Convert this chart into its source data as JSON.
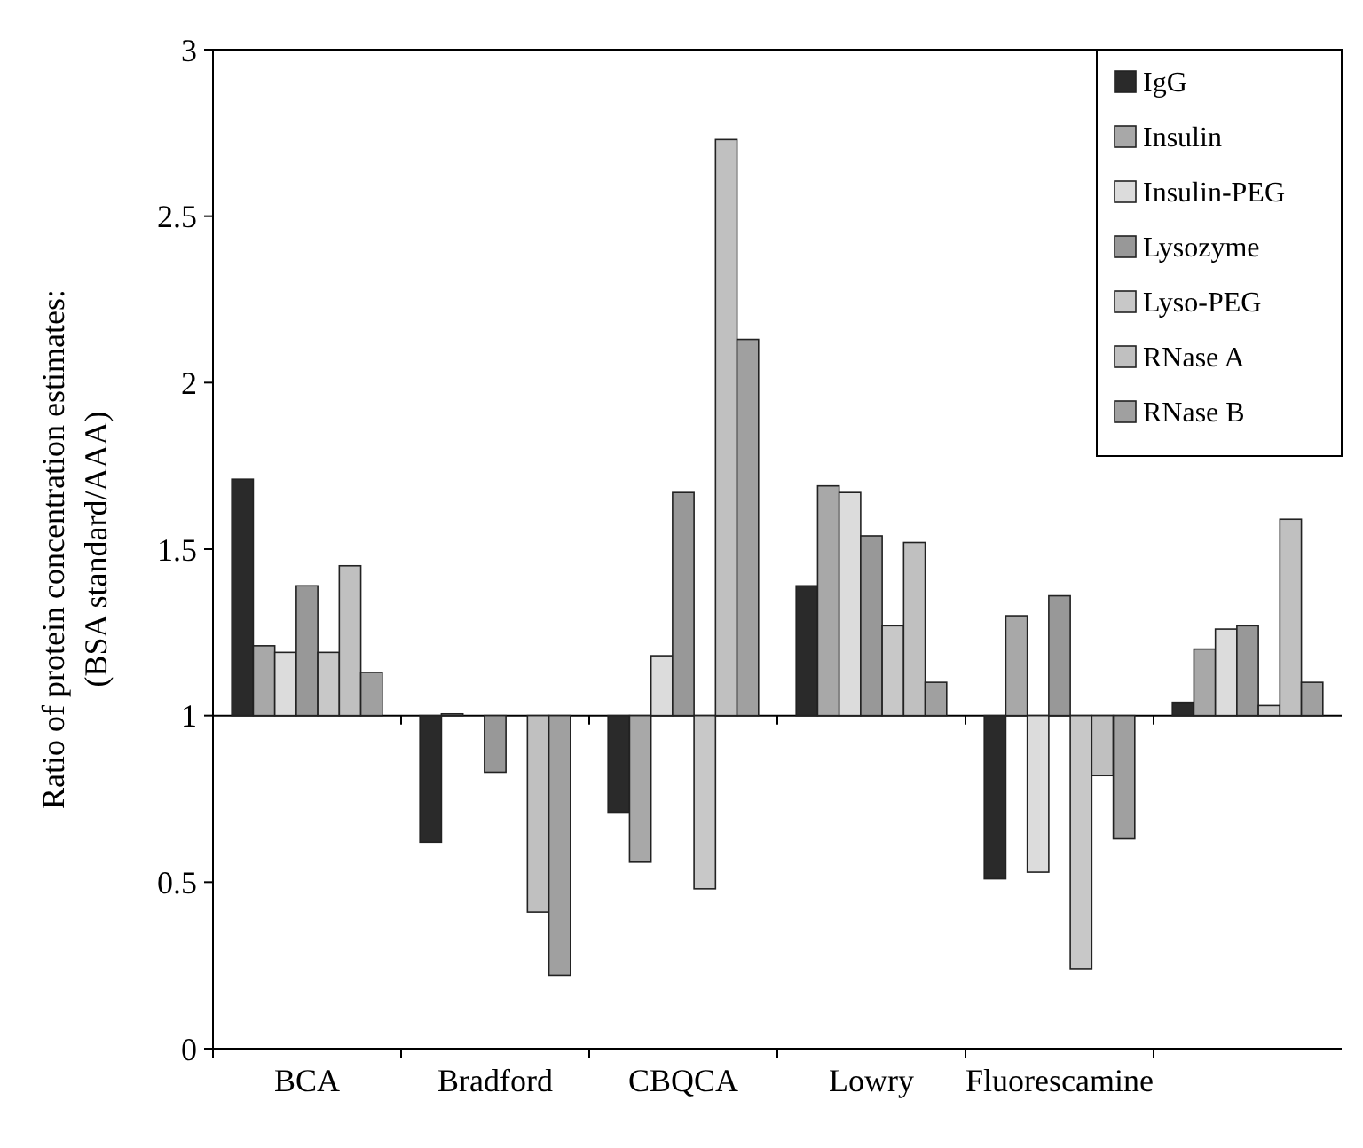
{
  "chart_data": {
    "type": "bar",
    "ylabel": "Ratio of protein concentration estimates:\n(BSA standard/AAA)",
    "categories": [
      "BCA",
      "Bradford",
      "CBQCA",
      "Lowry",
      "Fluorescamine",
      null
    ],
    "series": [
      {
        "name": "IgG",
        "color": "#2a2a2a",
        "base": [
          1,
          1,
          1,
          1,
          1,
          1
        ],
        "values": [
          0.71,
          -0.38,
          -0.29,
          0.39,
          -0.49,
          0.04
        ]
      },
      {
        "name": "Insulin",
        "color": "#a8a8a8",
        "base": [
          1,
          1,
          1,
          1,
          1,
          1
        ],
        "values": [
          0.21,
          0.005,
          -0.44,
          0.69,
          0.3,
          0.2
        ]
      },
      {
        "name": "Insulin-PEG",
        "color": "#dcdcdc",
        "base": [
          1,
          null,
          1,
          1,
          1,
          1
        ],
        "values": [
          0.19,
          null,
          0.18,
          0.67,
          -0.47,
          0.26
        ]
      },
      {
        "name": "Lysozyme",
        "color": "#989898",
        "base": [
          1,
          1,
          1,
          1,
          1,
          1
        ],
        "values": [
          0.39,
          -0.17,
          0.67,
          0.54,
          0.36,
          0.27
        ]
      },
      {
        "name": "Lyso-PEG",
        "color": "#c8c8c8",
        "base": [
          1,
          null,
          1,
          1,
          1,
          1
        ],
        "values": [
          0.19,
          null,
          -0.52,
          0.27,
          -0.76,
          0.03
        ]
      },
      {
        "name": "RNase A",
        "color": "#c0c0c0",
        "base": [
          1,
          1,
          1,
          1,
          1,
          1
        ],
        "values": [
          0.45,
          -0.59,
          1.73,
          0.52,
          -0.18,
          0.59
        ]
      },
      {
        "name": "RNase B",
        "color": "#a0a0a0",
        "base": [
          1,
          1,
          1,
          1,
          1,
          1
        ],
        "values": [
          0.13,
          -0.78,
          1.13,
          0.1,
          -0.37,
          0.1
        ]
      }
    ],
    "ylim": [
      0,
      3
    ],
    "yticks": [
      0,
      0.5,
      1,
      1.5,
      2,
      2.5,
      3
    ],
    "ref_lines": [
      {
        "axis": "y",
        "value": 1,
        "color": "#000000"
      }
    ],
    "legend": "top right",
    "grid": false
  }
}
